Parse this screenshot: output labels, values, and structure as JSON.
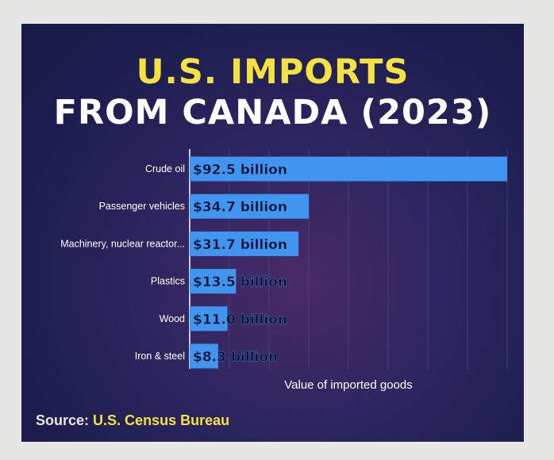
{
  "title_line1": "U.S. IMPORTS",
  "title_line2": "FROM CANADA (2023)",
  "source": {
    "label": "Source:",
    "value": "U.S. Census Bureau"
  },
  "colors": {
    "bar": "#3f95ef",
    "title_accent": "#f4e243",
    "background": "#1e1e50",
    "grid": "#4a4c7e"
  },
  "chart_data": {
    "type": "bar",
    "orientation": "horizontal",
    "title": "U.S. IMPORTS FROM CANADA (2023)",
    "xlabel": "Value of imported goods",
    "ylabel": "",
    "unit": "billion USD",
    "xlim": [
      0,
      92.5
    ],
    "grid": true,
    "categories": [
      "Crude oil",
      "Passenger vehicles",
      "Machinery, nuclear reactor...",
      "Plastics",
      "Wood",
      "Iron & steel"
    ],
    "values": [
      92.5,
      34.7,
      31.7,
      13.5,
      11.0,
      8.3
    ],
    "data_labels": [
      "$92.5 billion",
      "$34.7 billion",
      "$31.7 billion",
      "$13.5 billion",
      "$11.0 billion",
      "$8.3 billion"
    ]
  }
}
